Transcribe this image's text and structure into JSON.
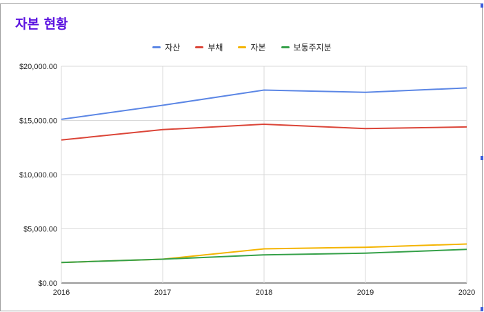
{
  "title": "자본 현황",
  "colors": {
    "assets": "#5b86e5",
    "liabilities": "#db4437",
    "equity": "#f4b400",
    "common_equity": "#34a048",
    "title": "#5b12e0",
    "grid": "#d9d9d9"
  },
  "chart_data": {
    "type": "line",
    "title": "자본 현황",
    "x": [
      "2016",
      "2017",
      "2018",
      "2019",
      "2020"
    ],
    "ylim": [
      0,
      20000
    ],
    "yticks": [
      "$0.00",
      "$5,000.00",
      "$10,000.00",
      "$15,000.00",
      "$20,000.00"
    ],
    "ytick_values": [
      0,
      5000,
      10000,
      15000,
      20000
    ],
    "grid": true,
    "legend_position": "top-center",
    "series": [
      {
        "key": "assets",
        "name": "자산",
        "values": [
          15100,
          16400,
          17800,
          17600,
          18000
        ]
      },
      {
        "key": "liabilities",
        "name": "부채",
        "values": [
          13200,
          14150,
          14650,
          14250,
          14400
        ]
      },
      {
        "key": "equity",
        "name": "자본",
        "values": [
          1900,
          2200,
          3150,
          3300,
          3600
        ]
      },
      {
        "key": "common_equity",
        "name": "보통주지분",
        "values": [
          1900,
          2200,
          2600,
          2750,
          3100
        ]
      }
    ]
  }
}
